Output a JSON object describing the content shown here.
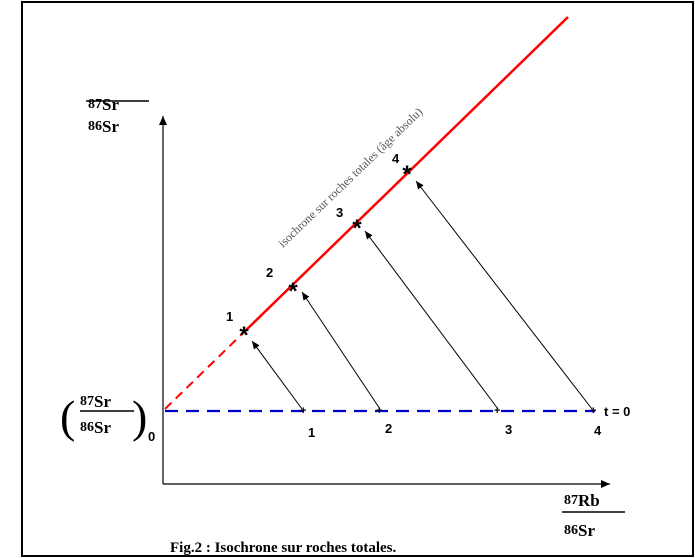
{
  "figure": {
    "caption": "Fig.2 : Isochrone sur roches totales.",
    "isochron_label": "isochrone sur roches totales (âge absolu)",
    "y_axis": {
      "num_mass": "87",
      "num_el": "Sr",
      "den_mass": "86",
      "den_el": "Sr"
    },
    "x_axis": {
      "num_mass": "87",
      "num_el": "Rb",
      "den_mass": "86",
      "den_el": "Sr"
    },
    "initial_ratio": {
      "num_mass": "87",
      "num_el": "Sr",
      "den_mass": "86",
      "den_el": "Sr",
      "subscript": "0"
    },
    "t0_label": "t = 0",
    "initial_points": [
      "1",
      "2",
      "3",
      "4"
    ],
    "current_points": [
      "1",
      "2",
      "3",
      "4"
    ],
    "colors": {
      "isochron": "#ff0000",
      "initial_line": "#0000cc",
      "frame": "#000000"
    }
  }
}
